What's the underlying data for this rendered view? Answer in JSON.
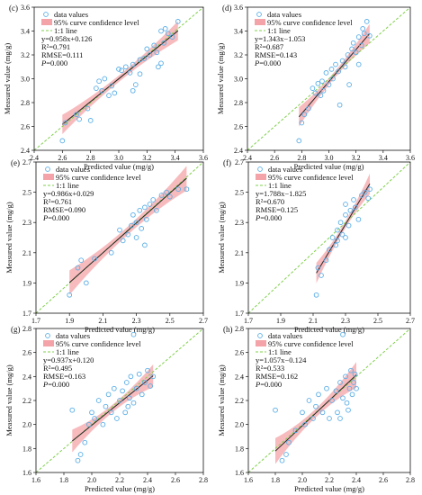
{
  "legend": {
    "data_values": "data values",
    "confidence": "95% curve confidence level",
    "one_to_one": "1:1 line"
  },
  "colors": {
    "points": "#5aaee6",
    "band": "#f4a4a8",
    "fit_line": "#222222",
    "one_to_one": "#7fd04a"
  },
  "chart_data": [
    {
      "panel": "(c)",
      "type": "scatter",
      "xlabel": "Predicted value (mg/g)",
      "ylabel": "Measured value (mg/g)",
      "xlim": [
        2.4,
        3.6
      ],
      "ylim": [
        2.4,
        3.6
      ],
      "xticks": [
        "2.4",
        "2.6",
        "2.8",
        "3.0",
        "3.2",
        "3.4",
        "3.6"
      ],
      "yticks": [
        "2.4",
        "2.6",
        "2.8",
        "3.0",
        "3.2",
        "3.4",
        "3.6"
      ],
      "fit": {
        "slope": 0.958,
        "intercept": 0.126,
        "x_range": [
          2.6,
          3.42
        ],
        "band": 0.06
      },
      "stats": [
        "y=0.958x+0.126",
        "R²=0.791",
        "RMSE=0.111",
        "P=0.000"
      ],
      "points": [
        [
          2.6,
          2.48
        ],
        [
          2.62,
          2.63
        ],
        [
          2.7,
          2.7
        ],
        [
          2.72,
          2.66
        ],
        [
          2.78,
          2.75
        ],
        [
          2.8,
          2.65
        ],
        [
          2.84,
          2.92
        ],
        [
          2.88,
          2.9
        ],
        [
          2.86,
          2.98
        ],
        [
          2.9,
          3.0
        ],
        [
          2.93,
          2.86
        ],
        [
          2.95,
          2.94
        ],
        [
          2.97,
          2.88
        ],
        [
          3.0,
          3.08
        ],
        [
          3.02,
          3.07
        ],
        [
          3.05,
          3.1
        ],
        [
          3.08,
          3.05
        ],
        [
          3.1,
          3.12
        ],
        [
          3.12,
          2.95
        ],
        [
          3.15,
          3.16
        ],
        [
          3.15,
          3.04
        ],
        [
          3.18,
          3.17
        ],
        [
          3.2,
          3.25
        ],
        [
          3.22,
          3.2
        ],
        [
          3.25,
          3.28
        ],
        [
          3.27,
          3.22
        ],
        [
          3.28,
          3.1
        ],
        [
          3.3,
          3.4
        ],
        [
          3.32,
          3.3
        ],
        [
          3.33,
          3.42
        ],
        [
          3.35,
          3.38
        ],
        [
          3.38,
          3.35
        ],
        [
          3.42,
          3.48
        ],
        [
          3.3,
          3.13
        ],
        [
          3.1,
          2.9
        ]
      ]
    },
    {
      "panel": "(d)",
      "type": "scatter",
      "xlabel": "Predicted value (mg/g)",
      "ylabel": "Measured value (mg/g)",
      "xlim": [
        2.4,
        3.6
      ],
      "ylim": [
        2.4,
        3.6
      ],
      "xticks": [
        "2.4",
        "2.6",
        "2.8",
        "3.0",
        "3.2",
        "3.4",
        "3.6"
      ],
      "yticks": [
        "2.4",
        "2.6",
        "2.8",
        "3.0",
        "3.2",
        "3.4",
        "3.6"
      ],
      "fit": {
        "slope": 1.343,
        "intercept": -1.053,
        "x_range": [
          2.78,
          3.3
        ],
        "band": 0.06
      },
      "stats": [
        "y=1.343x−1.053",
        "R²=0.687",
        "RMSE=0.143",
        "P=0.000"
      ],
      "points": [
        [
          2.78,
          2.48
        ],
        [
          2.8,
          2.63
        ],
        [
          2.82,
          2.7
        ],
        [
          2.85,
          2.75
        ],
        [
          2.88,
          2.92
        ],
        [
          2.9,
          2.88
        ],
        [
          2.92,
          2.96
        ],
        [
          2.94,
          2.86
        ],
        [
          2.96,
          2.9
        ],
        [
          2.98,
          3.05
        ],
        [
          3.0,
          2.95
        ],
        [
          3.02,
          3.08
        ],
        [
          3.03,
          3.0
        ],
        [
          3.05,
          3.12
        ],
        [
          3.07,
          3.06
        ],
        [
          3.1,
          3.15
        ],
        [
          3.12,
          3.1
        ],
        [
          3.14,
          3.2
        ],
        [
          3.15,
          2.95
        ],
        [
          3.17,
          3.25
        ],
        [
          3.18,
          3.3
        ],
        [
          3.2,
          3.22
        ],
        [
          3.22,
          3.35
        ],
        [
          3.24,
          3.28
        ],
        [
          3.25,
          3.42
        ],
        [
          3.26,
          3.38
        ],
        [
          3.28,
          3.48
        ],
        [
          3.3,
          3.36
        ],
        [
          3.22,
          3.12
        ],
        [
          3.08,
          2.78
        ],
        [
          2.95,
          2.98
        ]
      ]
    },
    {
      "panel": "(e)",
      "type": "scatter",
      "xlabel": "Predicted value (mg/g)",
      "ylabel": "Measured value (mg/g)",
      "xlim": [
        1.7,
        2.7
      ],
      "ylim": [
        1.7,
        2.7
      ],
      "xticks": [
        "1.7",
        "1.9",
        "2.1",
        "2.3",
        "2.5",
        "2.7"
      ],
      "yticks": [
        "1.7",
        "1.9",
        "2.1",
        "2.3",
        "2.5",
        "2.7"
      ],
      "fit": {
        "slope": 0.986,
        "intercept": 0.029,
        "x_range": [
          1.9,
          2.6
        ],
        "band": 0.06
      },
      "stats": [
        "y=0.986x+0.029",
        "R²=0.761",
        "RMSE=0.090",
        "P=0.000"
      ],
      "points": [
        [
          1.9,
          1.82
        ],
        [
          1.95,
          2.0
        ],
        [
          1.97,
          2.05
        ],
        [
          2.0,
          1.9
        ],
        [
          2.05,
          2.06
        ],
        [
          2.15,
          2.1
        ],
        [
          2.2,
          2.25
        ],
        [
          2.22,
          2.18
        ],
        [
          2.25,
          2.22
        ],
        [
          2.27,
          2.28
        ],
        [
          2.28,
          2.35
        ],
        [
          2.3,
          2.2
        ],
        [
          2.3,
          2.3
        ],
        [
          2.32,
          2.38
        ],
        [
          2.33,
          2.26
        ],
        [
          2.35,
          2.4
        ],
        [
          2.36,
          2.32
        ],
        [
          2.38,
          2.42
        ],
        [
          2.4,
          2.45
        ],
        [
          2.42,
          2.38
        ],
        [
          2.45,
          2.48
        ],
        [
          2.48,
          2.5
        ],
        [
          2.5,
          2.47
        ],
        [
          2.55,
          2.52
        ],
        [
          2.6,
          2.52
        ],
        [
          2.35,
          2.15
        ]
      ]
    },
    {
      "panel": "(f)",
      "type": "scatter",
      "xlabel": "Predicted value (mg/g)",
      "ylabel": "Measured value (mg/g)",
      "xlim": [
        1.7,
        2.7
      ],
      "ylim": [
        1.7,
        2.7
      ],
      "xticks": [
        "1.7",
        "1.9",
        "2.1",
        "2.3",
        "2.5",
        "2.7"
      ],
      "yticks": [
        "1.7",
        "1.9",
        "2.1",
        "2.3",
        "2.5",
        "2.7"
      ],
      "fit": {
        "slope": 1.788,
        "intercept": -1.825,
        "x_range": [
          2.12,
          2.45
        ],
        "band": 0.05
      },
      "stats": [
        "y=1.788x−1.825",
        "R²=0.670",
        "RMSE=0.125",
        "P=0.000"
      ],
      "points": [
        [
          2.12,
          1.82
        ],
        [
          2.13,
          2.0
        ],
        [
          2.15,
          1.95
        ],
        [
          2.18,
          2.05
        ],
        [
          2.2,
          2.12
        ],
        [
          2.22,
          2.2
        ],
        [
          2.24,
          2.15
        ],
        [
          2.25,
          2.25
        ],
        [
          2.27,
          2.3
        ],
        [
          2.28,
          2.22
        ],
        [
          2.3,
          2.35
        ],
        [
          2.3,
          2.42
        ],
        [
          2.32,
          2.28
        ],
        [
          2.33,
          2.38
        ],
        [
          2.35,
          2.45
        ],
        [
          2.36,
          2.4
        ],
        [
          2.38,
          2.32
        ],
        [
          2.4,
          2.48
        ],
        [
          2.42,
          2.5
        ],
        [
          2.44,
          2.46
        ],
        [
          2.45,
          2.52
        ],
        [
          2.25,
          2.18
        ],
        [
          2.3,
          2.2
        ]
      ]
    },
    {
      "panel": "(g)",
      "type": "scatter",
      "xlabel": "Predicted value (mg/g)",
      "ylabel": "Measured value (mg/g)",
      "xlim": [
        1.6,
        2.8
      ],
      "ylim": [
        1.6,
        2.8
      ],
      "xticks": [
        "1.6",
        "1.8",
        "2.0",
        "2.2",
        "2.4",
        "2.6",
        "2.8"
      ],
      "yticks": [
        "1.6",
        "1.8",
        "2.0",
        "2.2",
        "2.4",
        "2.6",
        "2.8"
      ],
      "fit": {
        "slope": 0.937,
        "intercept": 0.12,
        "x_range": [
          1.86,
          2.44
        ],
        "band": 0.07
      },
      "stats": [
        "y=0.937x+0.120",
        "R²=0.495",
        "RMSE=0.163",
        "P=0.000"
      ],
      "points": [
        [
          1.86,
          2.12
        ],
        [
          1.9,
          1.7
        ],
        [
          1.92,
          1.75
        ],
        [
          1.95,
          1.85
        ],
        [
          1.98,
          2.0
        ],
        [
          2.0,
          2.1
        ],
        [
          2.02,
          2.05
        ],
        [
          2.05,
          2.2
        ],
        [
          2.08,
          2.0
        ],
        [
          2.1,
          2.15
        ],
        [
          2.12,
          2.25
        ],
        [
          2.14,
          2.1
        ],
        [
          2.16,
          2.3
        ],
        [
          2.18,
          2.05
        ],
        [
          2.2,
          2.2
        ],
        [
          2.22,
          2.28
        ],
        [
          2.24,
          2.1
        ],
        [
          2.25,
          2.35
        ],
        [
          2.27,
          2.22
        ],
        [
          2.28,
          2.4
        ],
        [
          2.3,
          2.18
        ],
        [
          2.3,
          2.75
        ],
        [
          2.32,
          2.3
        ],
        [
          2.34,
          2.42
        ],
        [
          2.36,
          2.25
        ],
        [
          2.38,
          2.35
        ],
        [
          2.4,
          2.45
        ],
        [
          2.42,
          2.32
        ],
        [
          2.44,
          2.4
        ],
        [
          2.26,
          2.15
        ]
      ]
    },
    {
      "panel": "(h)",
      "type": "scatter",
      "xlabel": "Predicted value (mg/g)",
      "ylabel": "Measured value (mg/g)",
      "xlim": [
        1.6,
        2.8
      ],
      "ylim": [
        1.6,
        2.8
      ],
      "xticks": [
        "1.6",
        "1.8",
        "2.0",
        "2.2",
        "2.4",
        "2.6",
        "2.8"
      ],
      "yticks": [
        "1.6",
        "1.8",
        "2.0",
        "2.2",
        "2.4",
        "2.6",
        "2.8"
      ],
      "fit": {
        "slope": 1.057,
        "intercept": -0.124,
        "x_range": [
          1.8,
          2.4
        ],
        "band": 0.08
      },
      "stats": [
        "y=1.057x−0.124",
        "R²=0.533",
        "RMSE=0.162",
        "P=0.000"
      ],
      "points": [
        [
          1.8,
          2.12
        ],
        [
          1.85,
          1.7
        ],
        [
          1.88,
          1.75
        ],
        [
          1.9,
          1.85
        ],
        [
          1.95,
          1.95
        ],
        [
          2.0,
          2.1
        ],
        [
          2.02,
          2.0
        ],
        [
          2.05,
          2.2
        ],
        [
          2.08,
          2.05
        ],
        [
          2.1,
          2.15
        ],
        [
          2.12,
          2.25
        ],
        [
          2.15,
          2.1
        ],
        [
          2.18,
          2.3
        ],
        [
          2.2,
          2.05
        ],
        [
          2.22,
          2.2
        ],
        [
          2.25,
          2.28
        ],
        [
          2.26,
          2.1
        ],
        [
          2.28,
          2.35
        ],
        [
          2.3,
          2.75
        ],
        [
          2.3,
          2.22
        ],
        [
          2.32,
          2.4
        ],
        [
          2.33,
          2.18
        ],
        [
          2.35,
          2.3
        ],
        [
          2.36,
          2.45
        ],
        [
          2.37,
          2.25
        ],
        [
          2.38,
          2.35
        ],
        [
          2.39,
          2.42
        ],
        [
          2.4,
          2.3
        ],
        [
          2.34,
          2.12
        ],
        [
          2.28,
          2.05
        ]
      ]
    }
  ]
}
